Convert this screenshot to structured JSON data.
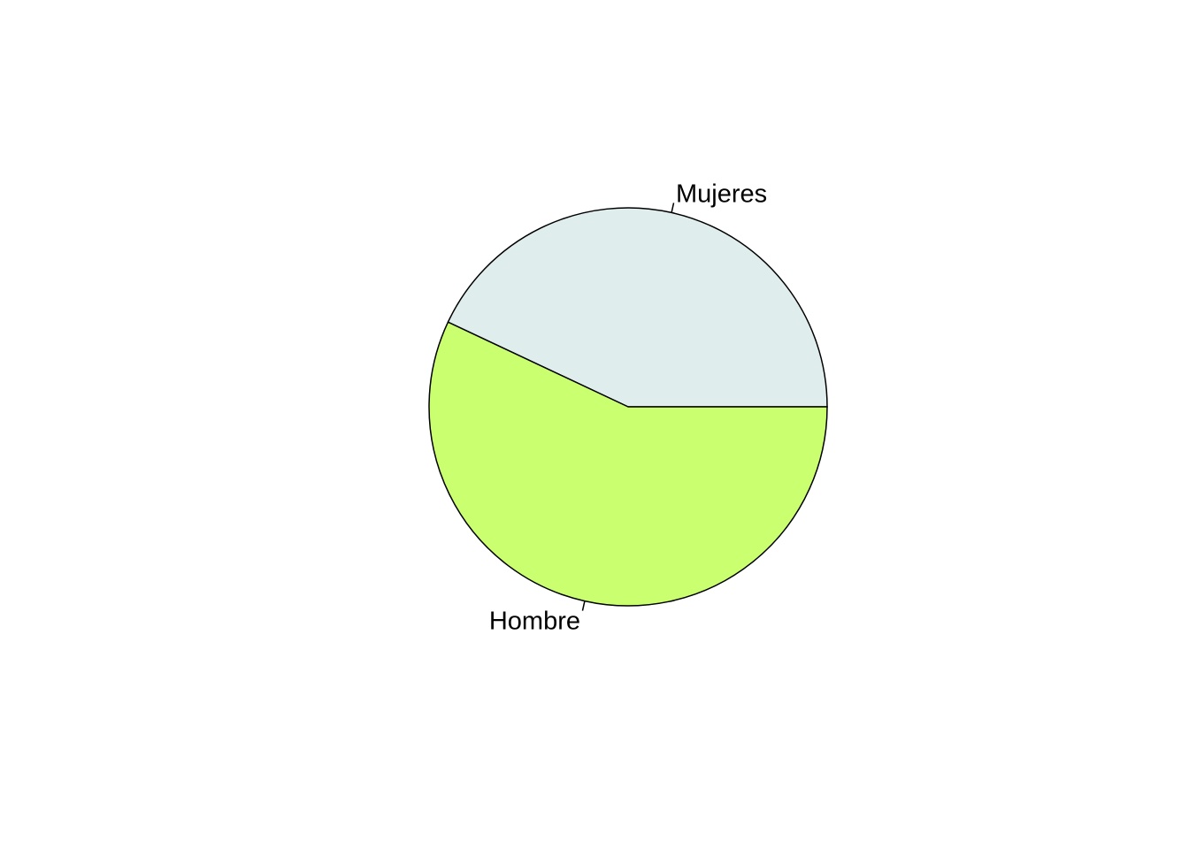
{
  "chart_data": {
    "type": "pie",
    "title": "",
    "labels": [
      "Mujeres",
      "Hombre"
    ],
    "values": [
      0.43,
      0.57
    ],
    "colors": [
      "#DFEDED",
      "#CAFF70"
    ],
    "start_angle_deg": 0,
    "direction": "counterclockwise",
    "border_color": "#000000",
    "legend": "none"
  }
}
